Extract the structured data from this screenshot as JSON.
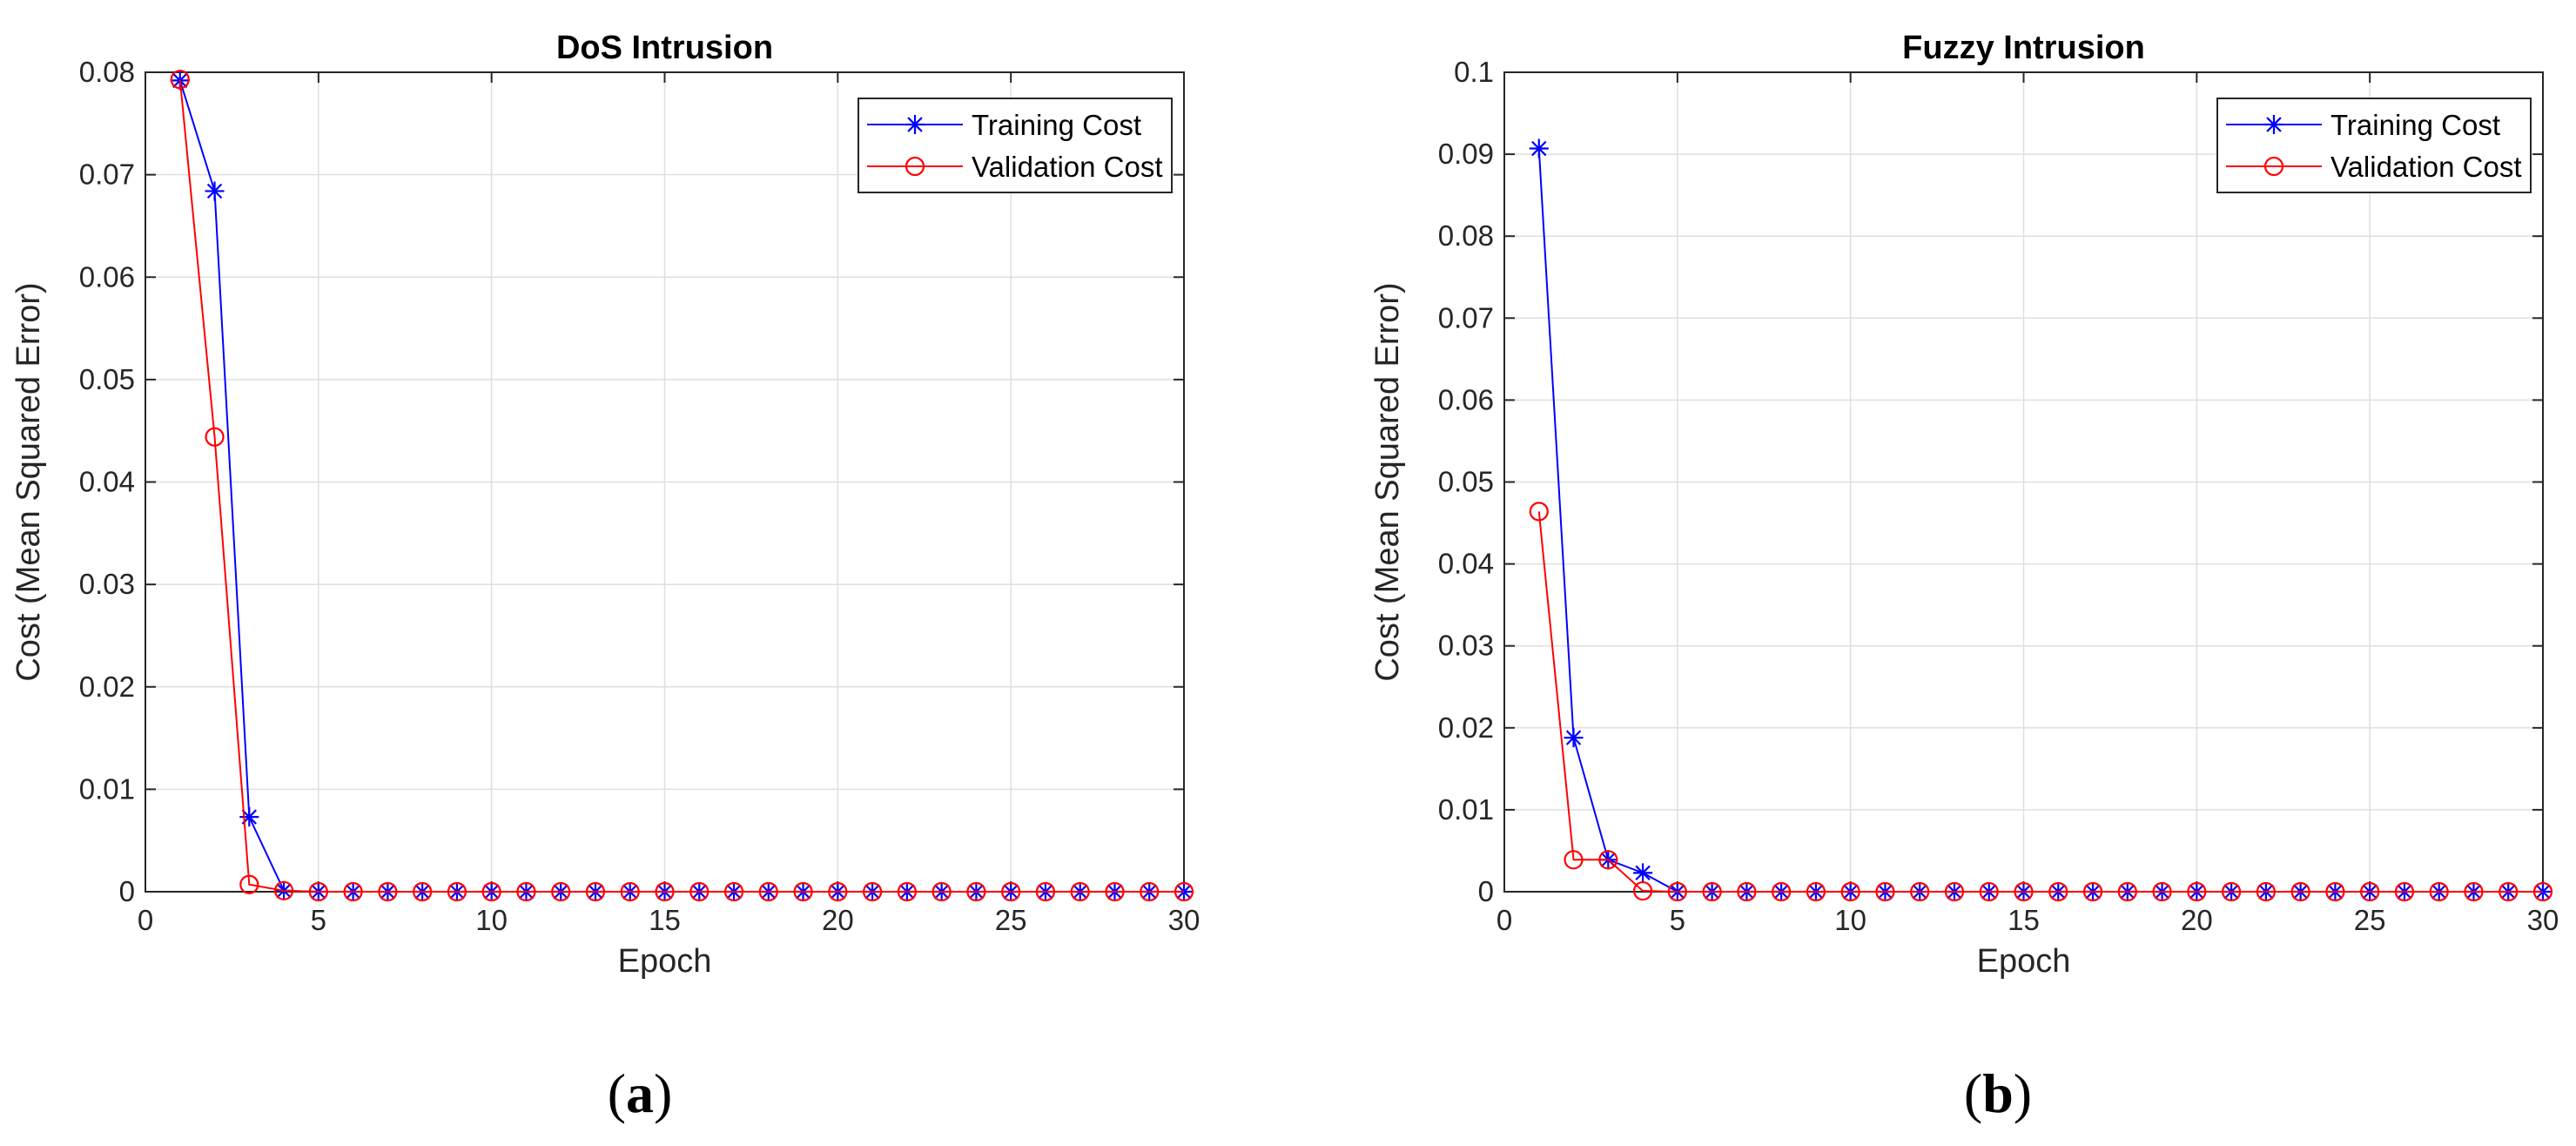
{
  "chart_data": [
    {
      "type": "line",
      "panel": "a",
      "title": "DoS Intrusion",
      "xlabel": "Epoch",
      "ylabel": "Cost (Mean Squared Error)",
      "xlim": [
        0,
        30
      ],
      "ylim": [
        0,
        0.08
      ],
      "xticks": [
        "0",
        "5",
        "10",
        "15",
        "20",
        "25",
        "30"
      ],
      "yticks": [
        "0",
        "0.01",
        "0.02",
        "0.03",
        "0.04",
        "0.05",
        "0.06",
        "0.07",
        "0.08"
      ],
      "grid": true,
      "legend_position": "top-right",
      "x": [
        1,
        2,
        3,
        4,
        5,
        6,
        7,
        8,
        9,
        10,
        11,
        12,
        13,
        14,
        15,
        16,
        17,
        18,
        19,
        20,
        21,
        22,
        23,
        24,
        25,
        26,
        27,
        28,
        29,
        30
      ],
      "series": [
        {
          "name": "Training Cost",
          "color": "#0000ff",
          "marker": "asterisk",
          "values": [
            0.0792,
            0.0684,
            0.0073,
            0.0001,
            0,
            0,
            0,
            0,
            0,
            0,
            0,
            0,
            0,
            0,
            0,
            0,
            0,
            0,
            0,
            0,
            0,
            0,
            0,
            0,
            0,
            0,
            0,
            0,
            0,
            0
          ]
        },
        {
          "name": "Validation Cost",
          "color": "#ff0000",
          "marker": "circle",
          "values": [
            0.0793,
            0.0444,
            0.0007,
            0.0001,
            0,
            0,
            0,
            0,
            0,
            0,
            0,
            0,
            0,
            0,
            0,
            0,
            0,
            0,
            0,
            0,
            0,
            0,
            0,
            0,
            0,
            0,
            0,
            0,
            0,
            0
          ]
        }
      ]
    },
    {
      "type": "line",
      "panel": "b",
      "title": "Fuzzy Intrusion",
      "xlabel": "Epoch",
      "ylabel": "Cost (Mean Squared Error)",
      "xlim": [
        0,
        30
      ],
      "ylim": [
        0,
        0.1
      ],
      "xticks": [
        "0",
        "5",
        "10",
        "15",
        "20",
        "25",
        "30"
      ],
      "yticks": [
        "0",
        "0.01",
        "0.02",
        "0.03",
        "0.04",
        "0.05",
        "0.06",
        "0.07",
        "0.08",
        "0.09",
        "0.1"
      ],
      "grid": true,
      "legend_position": "top-right",
      "x": [
        1,
        2,
        3,
        4,
        5,
        6,
        7,
        8,
        9,
        10,
        11,
        12,
        13,
        14,
        15,
        16,
        17,
        18,
        19,
        20,
        21,
        22,
        23,
        24,
        25,
        26,
        27,
        28,
        29,
        30
      ],
      "series": [
        {
          "name": "Training Cost",
          "color": "#0000ff",
          "marker": "asterisk",
          "values": [
            0.0907,
            0.0188,
            0.0039,
            0.0023,
            0,
            0,
            0,
            0,
            0,
            0,
            0,
            0,
            0,
            0,
            0,
            0,
            0,
            0,
            0,
            0,
            0,
            0,
            0,
            0,
            0,
            0,
            0,
            0,
            0,
            0
          ]
        },
        {
          "name": "Validation Cost",
          "color": "#ff0000",
          "marker": "circle",
          "values": [
            0.0464,
            0.0039,
            0.0039,
            0.0001,
            0,
            0,
            0,
            0,
            0,
            0,
            0,
            0,
            0,
            0,
            0,
            0,
            0,
            0,
            0,
            0,
            0,
            0,
            0,
            0,
            0,
            0,
            0,
            0,
            0,
            0
          ]
        }
      ]
    }
  ]
}
